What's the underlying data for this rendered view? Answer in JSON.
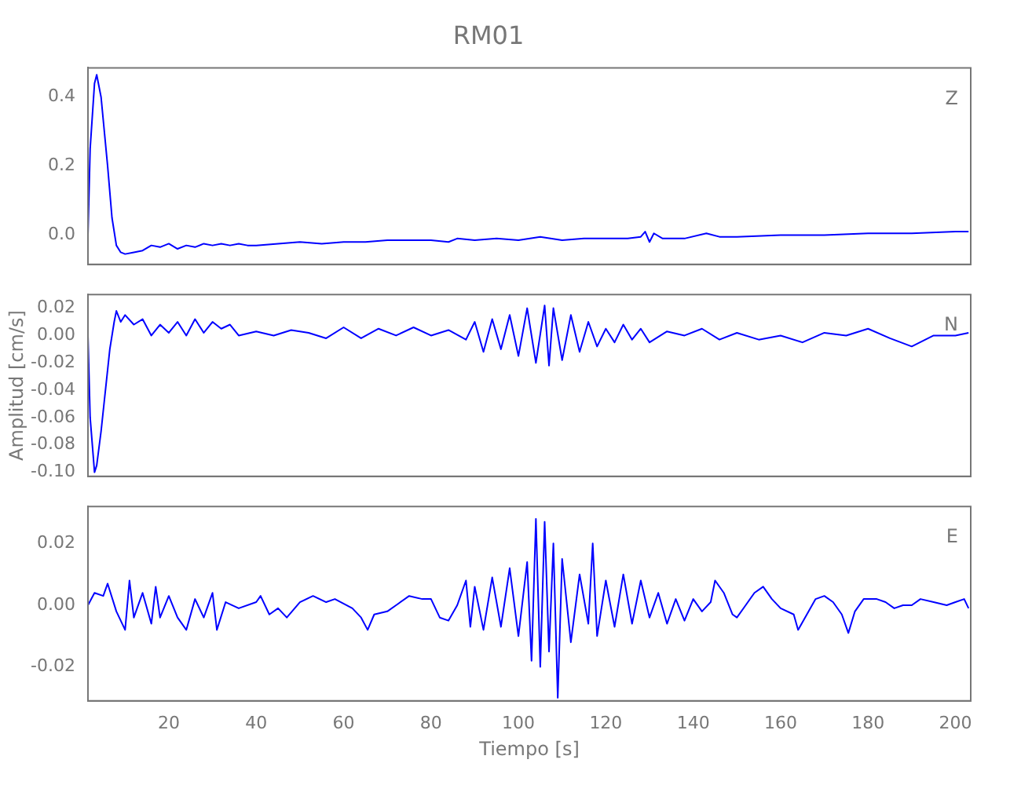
{
  "chart_data": [
    {
      "type": "line",
      "title": "RM01",
      "annotations": [
        "Z"
      ],
      "color": "#0000ff",
      "tick_labels": "y",
      "xlim": [
        1.5,
        203.5
      ],
      "xticks": [
        20,
        40,
        60,
        80,
        100,
        120,
        140,
        160,
        180,
        200
      ],
      "ylim": [
        -0.085,
        0.485
      ],
      "yticks": [
        {
          "value": 0,
          "label": "0.0"
        },
        {
          "value": 0.2,
          "label": "0.2"
        },
        {
          "value": 0.4,
          "label": "0.4"
        }
      ],
      "x": [
        1.5,
        2,
        3,
        3.5,
        4.5,
        6,
        7,
        8,
        9,
        10,
        12,
        14,
        16,
        18,
        20,
        22,
        24,
        26,
        28,
        30,
        32,
        34,
        36,
        38,
        40,
        45,
        50,
        55,
        60,
        65,
        70,
        75,
        80,
        84,
        86,
        90,
        95,
        100,
        105,
        110,
        115,
        120,
        125,
        128,
        129,
        130,
        131,
        133,
        138,
        143,
        146,
        150,
        160,
        170,
        180,
        190,
        200,
        203
      ],
      "values": [
        0.0,
        0.25,
        0.44,
        0.465,
        0.4,
        0.2,
        0.05,
        -0.03,
        -0.05,
        -0.055,
        -0.05,
        -0.045,
        -0.03,
        -0.035,
        -0.025,
        -0.04,
        -0.03,
        -0.035,
        -0.025,
        -0.03,
        -0.025,
        -0.03,
        -0.025,
        -0.03,
        -0.03,
        -0.025,
        -0.02,
        -0.025,
        -0.02,
        -0.02,
        -0.015,
        -0.015,
        -0.015,
        -0.02,
        -0.01,
        -0.015,
        -0.01,
        -0.015,
        -0.005,
        -0.015,
        -0.01,
        -0.01,
        -0.01,
        -0.005,
        0.01,
        -0.02,
        0.005,
        -0.01,
        -0.01,
        0.005,
        -0.005,
        -0.005,
        0.0,
        0.0,
        0.005,
        0.005,
        0.01,
        0.01
      ]
    },
    {
      "type": "line",
      "ylabel": "Amplitud [cm/s]",
      "annotations": [
        "N"
      ],
      "color": "#0000ff",
      "tick_labels": "y",
      "xlim": [
        1.5,
        203.5
      ],
      "xticks": [
        20,
        40,
        60,
        80,
        100,
        120,
        140,
        160,
        180,
        200
      ],
      "ylim": [
        -0.103,
        0.03
      ],
      "yticks": [
        {
          "value": 0.02,
          "label": "0.02"
        },
        {
          "value": 0,
          "label": "0.00"
        },
        {
          "value": -0.02,
          "label": "-0.02"
        },
        {
          "value": -0.04,
          "label": "-0.04"
        },
        {
          "value": -0.06,
          "label": "-0.06"
        },
        {
          "value": -0.08,
          "label": "-0.08"
        },
        {
          "value": -0.1,
          "label": "-0.10"
        }
      ],
      "x": [
        1.5,
        2,
        3,
        3.5,
        4.5,
        5.5,
        6.5,
        7.5,
        8,
        9,
        10,
        12,
        14,
        16,
        18,
        20,
        22,
        24,
        26,
        28,
        30,
        32,
        34,
        36,
        40,
        44,
        48,
        52,
        56,
        60,
        64,
        68,
        72,
        76,
        80,
        84,
        88,
        90,
        92,
        94,
        96,
        98,
        100,
        102,
        104,
        106,
        107,
        108,
        110,
        112,
        114,
        116,
        118,
        120,
        122,
        124,
        126,
        128,
        130,
        134,
        138,
        142,
        146,
        150,
        155,
        160,
        165,
        170,
        175,
        180,
        185,
        190,
        195,
        200,
        203
      ],
      "values": [
        0.0,
        -0.06,
        -0.1,
        -0.095,
        -0.07,
        -0.04,
        -0.01,
        0.01,
        0.018,
        0.01,
        0.015,
        0.008,
        0.012,
        0.0,
        0.008,
        0.002,
        0.01,
        0.0,
        0.012,
        0.002,
        0.01,
        0.005,
        0.008,
        0.0,
        0.003,
        0.0,
        0.004,
        0.002,
        -0.002,
        0.006,
        -0.002,
        0.005,
        0.0,
        0.006,
        0.0,
        0.004,
        -0.003,
        0.01,
        -0.012,
        0.012,
        -0.01,
        0.015,
        -0.015,
        0.02,
        -0.02,
        0.022,
        -0.022,
        0.02,
        -0.018,
        0.015,
        -0.012,
        0.01,
        -0.008,
        0.005,
        -0.005,
        0.008,
        -0.003,
        0.005,
        -0.005,
        0.003,
        0.0,
        0.005,
        -0.003,
        0.002,
        -0.003,
        0.0,
        -0.005,
        0.002,
        0.0,
        0.005,
        -0.002,
        -0.008,
        0.0,
        0.0,
        0.002
      ]
    },
    {
      "type": "line",
      "xlabel": "Tiempo [s]",
      "annotations": [
        "E"
      ],
      "color": "#0000ff",
      "xlim": [
        1.5,
        203.5
      ],
      "xticks": [
        20,
        40,
        60,
        80,
        100,
        120,
        140,
        160,
        180,
        200
      ],
      "ylim": [
        -0.031,
        0.032
      ],
      "yticks": [
        {
          "value": 0.02,
          "label": "0.02"
        },
        {
          "value": 0,
          "label": "0.00"
        },
        {
          "value": -0.02,
          "label": "-0.02"
        }
      ],
      "x": [
        1.5,
        3,
        5,
        6,
        8,
        10,
        11,
        12,
        14,
        16,
        17,
        18,
        20,
        22,
        24,
        26,
        28,
        30,
        31,
        33,
        36,
        40,
        41,
        43,
        45,
        47,
        50,
        53,
        56,
        58,
        62,
        64,
        65.5,
        67,
        70,
        72,
        75,
        78,
        80,
        82,
        84,
        86,
        88,
        89,
        90,
        92,
        94,
        96,
        98,
        100,
        102,
        103,
        104,
        105,
        106,
        107,
        108,
        109,
        110,
        112,
        114,
        116,
        117,
        118,
        120,
        122,
        124,
        126,
        128,
        130,
        132,
        134,
        136,
        138,
        140,
        142,
        144,
        145,
        147,
        149,
        150,
        152,
        154,
        156,
        158,
        160,
        163,
        164,
        166,
        168,
        170,
        172,
        174,
        175.5,
        177,
        179,
        182,
        184,
        186,
        188,
        190,
        192,
        195,
        198,
        200,
        202,
        203
      ],
      "values": [
        0.0,
        0.004,
        0.003,
        0.007,
        -0.002,
        -0.008,
        0.008,
        -0.004,
        0.004,
        -0.006,
        0.006,
        -0.004,
        0.003,
        -0.004,
        -0.008,
        0.002,
        -0.004,
        0.004,
        -0.008,
        0.001,
        -0.001,
        0.001,
        0.003,
        -0.003,
        -0.001,
        -0.004,
        0.001,
        0.003,
        0.001,
        0.002,
        -0.001,
        -0.004,
        -0.008,
        -0.003,
        -0.002,
        0.0,
        0.003,
        0.002,
        0.002,
        -0.004,
        -0.005,
        0.0,
        0.008,
        -0.007,
        0.006,
        -0.008,
        0.009,
        -0.007,
        0.012,
        -0.01,
        0.014,
        -0.018,
        0.028,
        -0.02,
        0.027,
        -0.015,
        0.02,
        -0.03,
        0.015,
        -0.012,
        0.01,
        -0.006,
        0.02,
        -0.01,
        0.008,
        -0.007,
        0.01,
        -0.006,
        0.008,
        -0.004,
        0.004,
        -0.006,
        0.002,
        -0.005,
        0.002,
        -0.002,
        0.001,
        0.008,
        0.004,
        -0.003,
        -0.004,
        0.0,
        0.004,
        0.006,
        0.002,
        -0.001,
        -0.003,
        -0.008,
        -0.003,
        0.002,
        0.003,
        0.001,
        -0.003,
        -0.009,
        -0.002,
        0.002,
        0.002,
        0.001,
        -0.001,
        0.0,
        0.0,
        0.002,
        0.001,
        0.0,
        0.001,
        0.002,
        -0.001
      ]
    }
  ]
}
